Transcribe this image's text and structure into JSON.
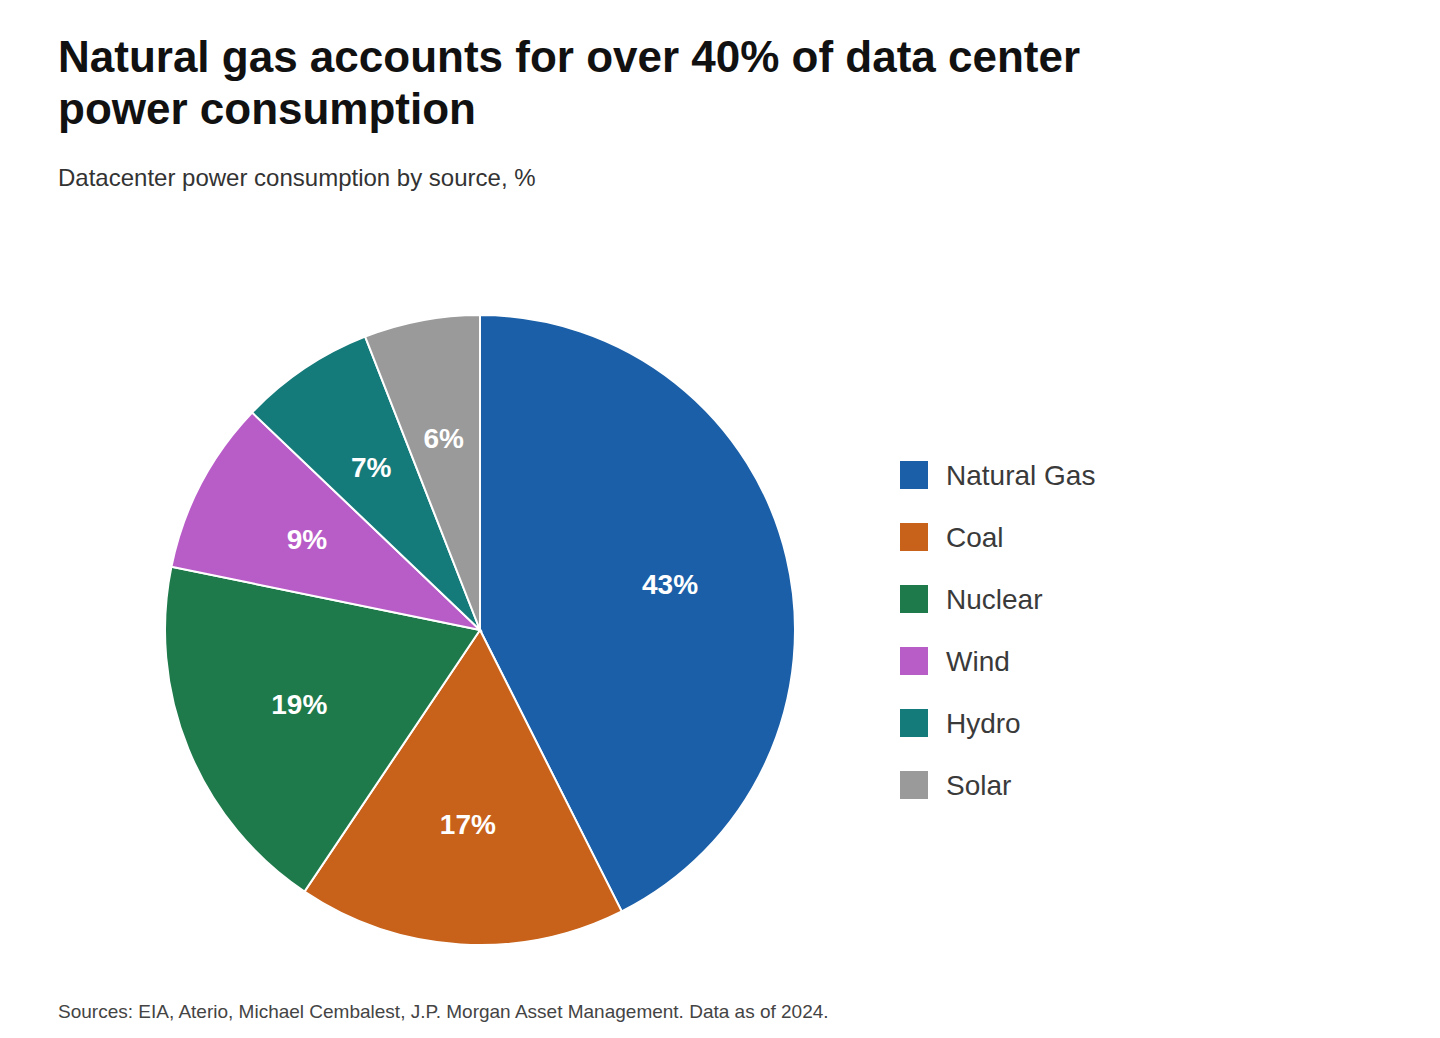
{
  "chart_data": {
    "type": "pie",
    "title": "Natural gas accounts for over 40% of data center\npower consumption",
    "subtitle": "Datacenter power consumption by source, %",
    "footer": "Sources: EIA, Aterio, Michael Cembalest, J.P. Morgan Asset Management. Data as of 2024.",
    "categories": [
      "Natural Gas",
      "Coal",
      "Nuclear",
      "Wind",
      "Hydro",
      "Solar"
    ],
    "values": [
      43,
      17,
      19,
      9,
      7,
      6
    ],
    "value_labels": [
      "43%",
      "17%",
      "19%",
      "9%",
      "7%",
      "6%"
    ],
    "colors": [
      "#1a5fa8",
      "#c8621a",
      "#1e7a4a",
      "#b85cc8",
      "#157a7a",
      "#9a9a9a"
    ],
    "data_labels": true,
    "legend": "right"
  }
}
